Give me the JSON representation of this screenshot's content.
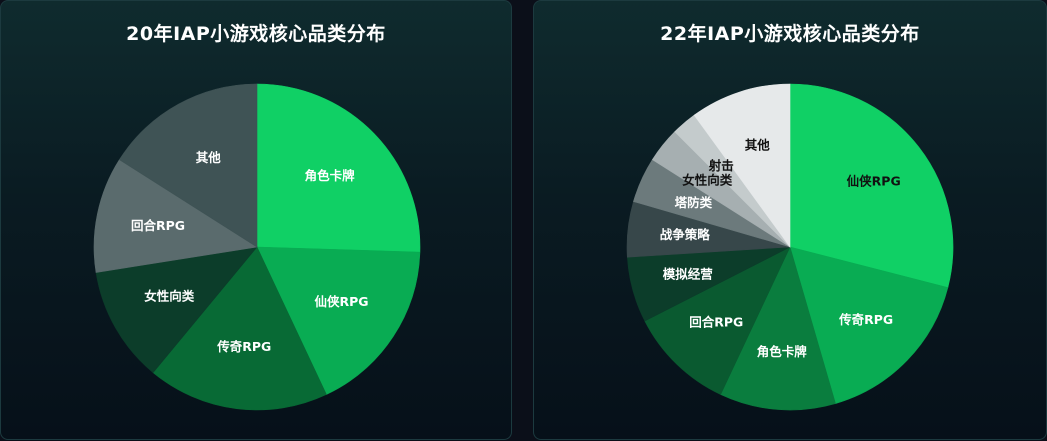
{
  "chart_data": [
    {
      "type": "pie",
      "title": "20年IAP小游戏核心品类分布",
      "slices": [
        {
          "label": "角色卡牌",
          "value": 25.5,
          "color": "#10d065",
          "label_color": "#ffffff"
        },
        {
          "label": "仙侠RPG",
          "value": 17.5,
          "color": "#09ac53",
          "label_color": "#ffffff"
        },
        {
          "label": "传奇RPG",
          "value": 18.0,
          "color": "#086a35",
          "label_color": "#ffffff"
        },
        {
          "label": "女性向类",
          "value": 11.5,
          "color": "#0c3d2a",
          "label_color": "#ffffff"
        },
        {
          "label": "回合RPG",
          "value": 11.5,
          "color": "#5a6b6d",
          "label_color": "#ffffff"
        },
        {
          "label": "其他",
          "value": 16.0,
          "color": "#3f5355",
          "label_color": "#ffffff"
        }
      ]
    },
    {
      "type": "pie",
      "title": "22年IAP小游戏核心品类分布",
      "slices": [
        {
          "label": "仙侠RPG",
          "value": 29.0,
          "color": "#10d065",
          "label_color": "#111111"
        },
        {
          "label": "传奇RPG",
          "value": 16.5,
          "color": "#09ac53",
          "label_color": "#ffffff"
        },
        {
          "label": "角色卡牌",
          "value": 11.5,
          "color": "#0a7d3e",
          "label_color": "#ffffff"
        },
        {
          "label": "回合RPG",
          "value": 10.5,
          "color": "#0a5a30",
          "label_color": "#ffffff"
        },
        {
          "label": "模拟经营",
          "value": 6.5,
          "color": "#0c3d2a",
          "label_color": "#ffffff"
        },
        {
          "label": "战争策略",
          "value": 5.5,
          "color": "#37474a",
          "label_color": "#ffffff"
        },
        {
          "label": "塔防类",
          "value": 4.5,
          "color": "#6c7a7c",
          "label_color": "#ffffff"
        },
        {
          "label": "女性向类",
          "value": 3.5,
          "color": "#a6afb1",
          "label_color": "#111111"
        },
        {
          "label": "射击",
          "value": 2.5,
          "color": "#c4cbcc",
          "label_color": "#111111"
        },
        {
          "label": "其他",
          "value": 10.0,
          "color": "#e6e9ea",
          "label_color": "#111111"
        }
      ]
    }
  ]
}
